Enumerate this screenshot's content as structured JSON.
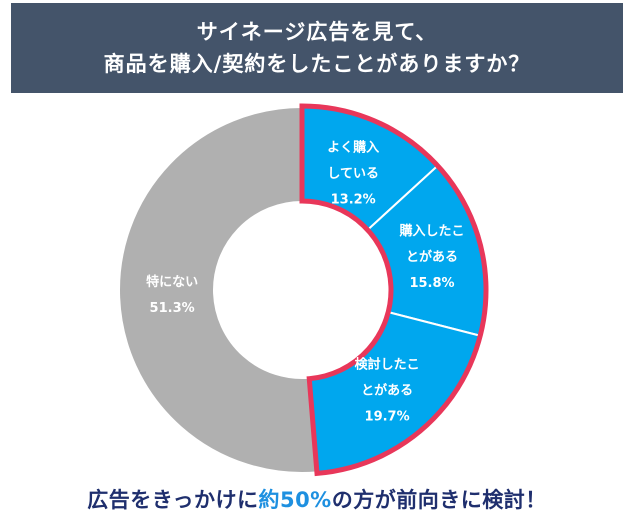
{
  "title": {
    "line1": "サイネージ広告を見て、",
    "line2": "商品を購入/契約をしたことがありますか？"
  },
  "chart_data": {
    "type": "pie",
    "variant": "donut",
    "slices": [
      {
        "label_lines": [
          "よく購入",
          "している"
        ],
        "value_text": "13.2%",
        "value": 13.2,
        "color": "#00a7ee"
      },
      {
        "label_lines": [
          "購入したこ",
          "とがある"
        ],
        "value_text": "15.8%",
        "value": 15.8,
        "color": "#00a7ee"
      },
      {
        "label_lines": [
          "検討したこ",
          "とがある"
        ],
        "value_text": "19.7%",
        "value": 19.7,
        "color": "#00a7ee"
      },
      {
        "label_lines": [
          "特にない"
        ],
        "value_text": "51.3%",
        "value": 51.3,
        "color": "#b0b0b0"
      }
    ],
    "highlight_color": "#e8375a",
    "highlighted_slices": [
      0,
      1,
      2
    ]
  },
  "footer": {
    "before": "広告をきっかけに",
    "accent": "約50%",
    "after": "の方が前向きに検討！"
  }
}
